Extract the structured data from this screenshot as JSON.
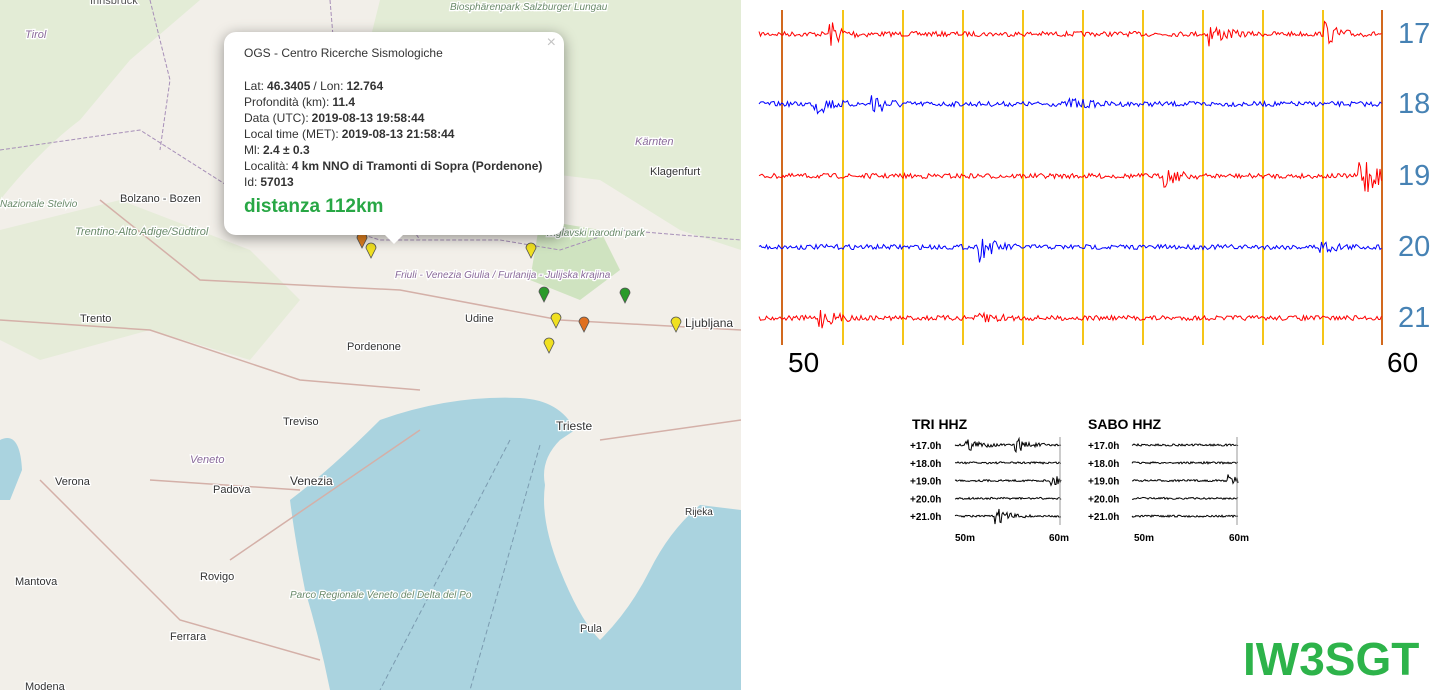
{
  "map": {
    "places": [
      "Innsbruck",
      "Tirol",
      "Biosphärenpark Salzburger Lungau",
      "Kärnten",
      "Klagenfurt",
      "Bolzano - Bozen",
      "Nazionale Stelvio",
      "Trentino-Alto Adige/Südtirol",
      "Triglavski narodni park",
      "Friuli - Venezia Giulia / Furlanija - Julijska krajina",
      "Trento",
      "Udine",
      "Pordenone",
      "Ljubljana",
      "Treviso",
      "Trieste",
      "Veneto",
      "Verona",
      "Padova",
      "Venezia",
      "Rijeka",
      "Mantova",
      "Rovigo",
      "Parco Regionale Veneto del Delta del Po",
      "Pula",
      "Ferrara",
      "Modena"
    ]
  },
  "popup": {
    "close": "×",
    "title": "OGS - Centro Ricerche Sismologiche",
    "lines": [
      [
        {
          "label": "Lat:",
          "value": "46.3405"
        },
        {
          "label": "/ Lon:",
          "value": "12.764"
        }
      ],
      [
        {
          "label": "Profondità (km):",
          "value": "11.4"
        }
      ],
      [
        {
          "label": "Data (UTC):",
          "value": "2019-08-13 19:58:44"
        }
      ],
      [
        {
          "label": "Local time (MET):",
          "value": "2019-08-13 21:58:44"
        }
      ],
      [
        {
          "label": "Ml:",
          "value": "2.4 ± 0.3"
        }
      ],
      [
        {
          "label": "Località:",
          "value": "4 km NNO di Tramonti di Sopra (Pordenone)"
        }
      ],
      [
        {
          "label": "Id:",
          "value": "57013"
        }
      ]
    ],
    "distance": "distanza 112km"
  },
  "helicorder": {
    "hours": [
      "17",
      "18",
      "19",
      "20",
      "21"
    ],
    "minutes": [
      "50",
      "60"
    ]
  },
  "stations": [
    {
      "name": "TRI HHZ",
      "hours": [
        "+17.0h",
        "+18.0h",
        "+19.0h",
        "+20.0h",
        "+21.0h"
      ],
      "x_labels": [
        "50m",
        "60m"
      ]
    },
    {
      "name": "SABO HHZ",
      "hours": [
        "+17.0h",
        "+18.0h",
        "+19.0h",
        "+20.0h",
        "+21.0h"
      ],
      "x_labels": [
        "50m",
        "60m"
      ]
    }
  ],
  "brand": "IW3SGT"
}
